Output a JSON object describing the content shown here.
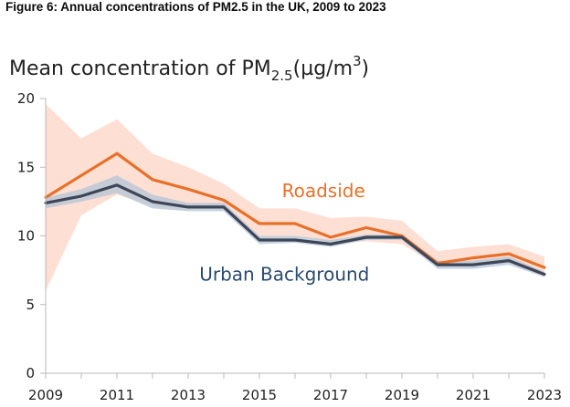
{
  "figure_title": "Figure 6: Annual concentrations of PM2.5 in the UK, 2009 to 2023",
  "chart_data": {
    "type": "line",
    "title": "Figure 6: Annual concentrations of PM2.5 in the UK, 2009 to 2023",
    "ylabel": {
      "prefix": "Mean concentration of PM",
      "subscript": "2.5",
      "unit_open": "(µg/m",
      "superscript": "3",
      "unit_close": ")"
    },
    "xlabel": "",
    "x": [
      2009,
      2010,
      2011,
      2012,
      2013,
      2014,
      2015,
      2016,
      2017,
      2018,
      2019,
      2020,
      2021,
      2022,
      2023
    ],
    "xticks": [
      "2009",
      "2011",
      "2013",
      "2015",
      "2017",
      "2019",
      "2021",
      "2023"
    ],
    "xlim": [
      2009,
      2023
    ],
    "ylim": [
      0,
      20
    ],
    "yticks": [
      "0",
      "5",
      "10",
      "15",
      "20"
    ],
    "grid": false,
    "series": [
      {
        "name": "Roadside",
        "color": "#e8702a",
        "band_color": "#fcd6c4",
        "values": [
          12.8,
          14.4,
          16.0,
          14.1,
          13.4,
          12.6,
          10.9,
          10.9,
          9.9,
          10.6,
          10.0,
          8.0,
          8.4,
          8.7,
          7.7
        ],
        "lower": [
          6.0,
          11.5,
          13.0,
          12.2,
          12.0,
          12.0,
          10.0,
          10.0,
          9.5,
          9.6,
          9.4,
          7.8,
          7.9,
          8.1,
          7.4
        ],
        "upper": [
          19.6,
          17.1,
          18.5,
          16.0,
          15.0,
          13.8,
          12.0,
          12.0,
          11.3,
          11.4,
          11.1,
          8.9,
          9.2,
          9.4,
          8.5
        ]
      },
      {
        "name": "Urban Background",
        "color": "#3d4658",
        "band_color": "#b8c6d6",
        "values": [
          12.4,
          12.9,
          13.7,
          12.5,
          12.1,
          12.1,
          9.7,
          9.7,
          9.4,
          9.9,
          9.9,
          7.9,
          7.9,
          8.2,
          7.2
        ],
        "lower": [
          12.0,
          12.5,
          13.1,
          12.0,
          11.8,
          11.8,
          9.4,
          9.5,
          9.2,
          9.7,
          9.7,
          7.6,
          7.6,
          7.9,
          7.0
        ],
        "upper": [
          12.8,
          13.4,
          14.4,
          13.0,
          12.4,
          12.4,
          10.0,
          10.0,
          9.7,
          10.1,
          10.1,
          8.2,
          8.2,
          8.5,
          7.4
        ]
      }
    ],
    "annotations": [
      {
        "text": "Roadside",
        "color": "#e8702a",
        "x": 2016.8,
        "y": 13.3
      },
      {
        "text": "Urban Background",
        "color": "#2a4a6e",
        "x": 2015.7,
        "y": 7.2
      }
    ]
  }
}
